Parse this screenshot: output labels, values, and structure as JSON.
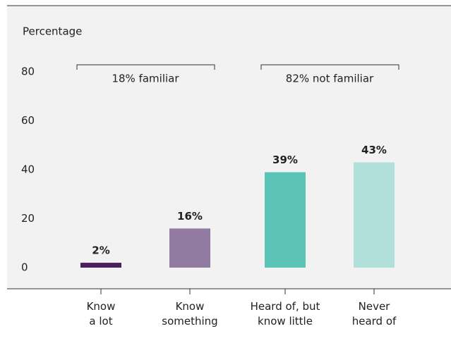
{
  "chart_data": {
    "type": "bar",
    "y_label": "Percentage",
    "categories": [
      [
        "Know",
        "a lot"
      ],
      [
        "Know",
        "something"
      ],
      [
        "Heard of, but",
        "know little"
      ],
      [
        "Never",
        "heard of"
      ]
    ],
    "values": [
      2,
      16,
      39,
      43
    ],
    "value_labels": [
      "2%",
      "16%",
      "39%",
      "43%"
    ],
    "colors": [
      "#4b1f5f",
      "#917ba1",
      "#5cc4b6",
      "#b0e0d9"
    ],
    "annotations": [
      "18% familiar",
      "82% not familiar"
    ],
    "ylim": [
      0,
      80
    ],
    "yticks": [
      0,
      20,
      40,
      60,
      80
    ],
    "grid": false
  }
}
